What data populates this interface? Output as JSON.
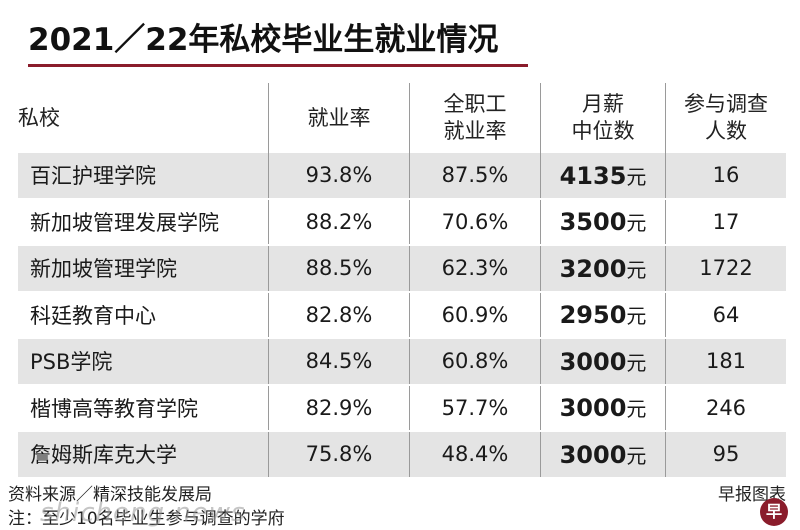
{
  "title": "2021／22年私校毕业生就业情况",
  "columns": {
    "school": "私校",
    "employment_rate": "就业率",
    "fulltime_rate_1": "全职工",
    "fulltime_rate_2": "就业率",
    "salary_1": "月薪",
    "salary_2": "中位数",
    "respondents_1": "参与调查",
    "respondents_2": "人数"
  },
  "rows": [
    {
      "school": "百汇护理学院",
      "employment_rate": "93.8%",
      "fulltime_rate": "87.5%",
      "salary": "4135",
      "unit": "元",
      "respondents": "16"
    },
    {
      "school": "新加坡管理发展学院",
      "employment_rate": "88.2%",
      "fulltime_rate": "70.6%",
      "salary": "3500",
      "unit": "元",
      "respondents": "17"
    },
    {
      "school": "新加坡管理学院",
      "employment_rate": "88.5%",
      "fulltime_rate": "62.3%",
      "salary": "3200",
      "unit": "元",
      "respondents": "1722"
    },
    {
      "school": "科廷教育中心",
      "employment_rate": "82.8%",
      "fulltime_rate": "60.9%",
      "salary": "2950",
      "unit": "元",
      "respondents": "64"
    },
    {
      "school": "PSB学院",
      "employment_rate": "84.5%",
      "fulltime_rate": "60.8%",
      "salary": "3000",
      "unit": "元",
      "respondents": "181"
    },
    {
      "school": "楷博高等教育学院",
      "employment_rate": "82.9%",
      "fulltime_rate": "57.7%",
      "salary": "3000",
      "unit": "元",
      "respondents": "246"
    },
    {
      "school": "詹姆斯库克大学",
      "employment_rate": "75.8%",
      "fulltime_rate": "48.4%",
      "salary": "3000",
      "unit": "元",
      "respondents": "95"
    }
  ],
  "footer": {
    "source": "资料来源／精深技能发展局",
    "note": "注：至少10名毕业生参与调查的学府",
    "credit": "早报图表",
    "watermark": "shicheng.news",
    "logo_char": "早"
  },
  "colors": {
    "title_rule": "#8a1c2b",
    "row_shade": "#e4e4e4"
  }
}
